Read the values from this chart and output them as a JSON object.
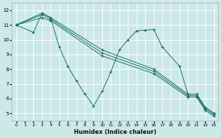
{
  "xlabel": "Humidex (Indice chaleur)",
  "bg_color": "#cce8e8",
  "grid_color": "#ffffff",
  "line_color": "#1a6b6b",
  "xlim": [
    -0.5,
    23.5
  ],
  "ylim": [
    4.5,
    12.5
  ],
  "xticks": [
    0,
    1,
    2,
    3,
    4,
    5,
    6,
    7,
    8,
    9,
    10,
    11,
    12,
    13,
    14,
    15,
    16,
    17,
    18,
    19,
    20,
    21,
    22,
    23
  ],
  "yticks": [
    5,
    6,
    7,
    8,
    9,
    10,
    11,
    12
  ],
  "series": [
    {
      "x": [
        0,
        2,
        3,
        4,
        5,
        6,
        7,
        8,
        9,
        10,
        11,
        12,
        13,
        14,
        15,
        16,
        17,
        19,
        20,
        21,
        22,
        23
      ],
      "y": [
        11.0,
        10.5,
        11.8,
        11.5,
        9.5,
        8.2,
        7.2,
        6.3,
        5.5,
        6.5,
        7.8,
        9.3,
        10.0,
        10.6,
        10.65,
        10.7,
        9.5,
        8.2,
        6.3,
        6.3,
        5.4,
        5.0
      ]
    },
    {
      "x": [
        0,
        3,
        4,
        10,
        16,
        20,
        21,
        22,
        23
      ],
      "y": [
        11.0,
        11.8,
        11.5,
        9.3,
        8.0,
        6.3,
        6.3,
        5.4,
        5.0
      ]
    },
    {
      "x": [
        0,
        3,
        4,
        10,
        16,
        20,
        21,
        22,
        23
      ],
      "y": [
        11.0,
        11.7,
        11.4,
        9.1,
        7.85,
        6.2,
        6.2,
        5.3,
        4.9
      ]
    },
    {
      "x": [
        0,
        3,
        4,
        10,
        16,
        20,
        21,
        22,
        23
      ],
      "y": [
        11.0,
        11.5,
        11.3,
        8.9,
        7.7,
        6.1,
        6.1,
        5.2,
        4.8
      ]
    }
  ]
}
